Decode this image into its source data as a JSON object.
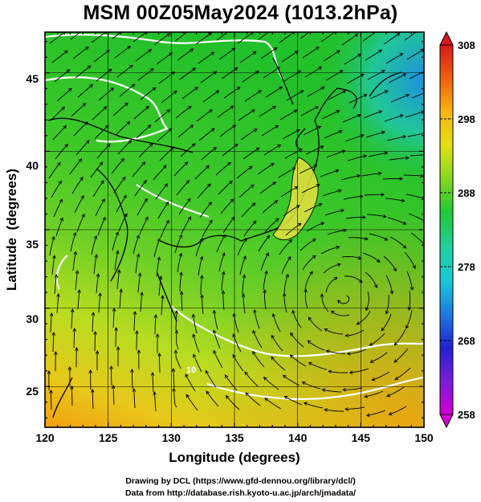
{
  "title": "MSM 00Z05May2024 (1013.2hPa)",
  "axes": {
    "xlabel": "Longitude (degrees)",
    "ylabel": "Latitude  (degrees)",
    "xticks": [
      "120",
      "125",
      "130",
      "135",
      "140",
      "145",
      "150"
    ],
    "yticks": [
      "25",
      "30",
      "35",
      "40",
      "45"
    ],
    "xlim": [
      120,
      150
    ],
    "ylim": [
      22.4,
      47.6
    ]
  },
  "contour_label": "10",
  "colorbar": {
    "ticks": [
      "308",
      "298",
      "288",
      "278",
      "268",
      "258"
    ],
    "range": [
      258,
      308
    ],
    "colors": [
      "#d400d4",
      "#7a1cd8",
      "#2222d0",
      "#1e78e0",
      "#18c8d8",
      "#20d0a0",
      "#22c832",
      "#88d820",
      "#e6e010",
      "#f8b410",
      "#f06010",
      "#d81818"
    ]
  },
  "credits": {
    "line1": "Drawing by DCL (https://www.gfd-dennou.org/library/dcl/)",
    "line2": "Data from http://database.rish.kyoto-u.ac.jp/arch/jmadata/"
  }
}
